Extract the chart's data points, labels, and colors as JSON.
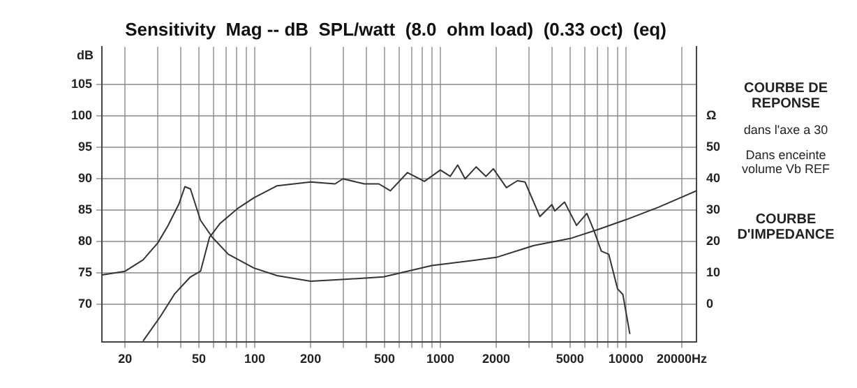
{
  "chart_data": {
    "type": "line",
    "title": "Sensitivity  Mag -- dB  SPL/watt  (8.0  ohm load)  (0.33 oct)  (eq)",
    "ylabel": "dB",
    "xlim": [
      15,
      24000
    ],
    "xticks": [
      20,
      {
        "value": 30,
        "label": null
      },
      {
        "value": 40,
        "label": null
      },
      50,
      {
        "value": 60,
        "label": null
      },
      {
        "value": 70,
        "label": null
      },
      {
        "value": 80,
        "label": null
      },
      {
        "value": 90,
        "label": null
      },
      100,
      200,
      {
        "value": 300,
        "label": null
      },
      {
        "value": 400,
        "label": null
      },
      500,
      {
        "value": 600,
        "label": null
      },
      {
        "value": 700,
        "label": null
      },
      {
        "value": 800,
        "label": null
      },
      {
        "value": 900,
        "label": null
      },
      1000,
      2000,
      {
        "value": 3000,
        "label": null
      },
      {
        "value": 4000,
        "label": null
      },
      5000,
      {
        "value": 6000,
        "label": null
      },
      {
        "value": 7000,
        "label": null
      },
      {
        "value": 8000,
        "label": null
      },
      {
        "value": 9000,
        "label": null
      },
      10000,
      {
        "value": 20000,
        "label": "20000Hz"
      }
    ],
    "ylim": [
      64,
      111
    ],
    "yticks": [
      70,
      75,
      80,
      85,
      90,
      95,
      100,
      105
    ],
    "y2lim": [
      -12,
      82
    ],
    "y2ticks": [
      0,
      10,
      20,
      30,
      40,
      50,
      {
        "value": 60,
        "label": "Ω"
      }
    ],
    "log": "x",
    "grid": true,
    "legend": false,
    "marker": "none",
    "line_style": "solid",
    "series": [
      {
        "color": "#333333",
        "x": [
          25,
          31,
          37,
          45,
          51,
          57,
          65,
          81,
          99,
          132,
          200,
          271,
          298,
          390,
          466,
          538,
          665,
          820,
          1000,
          1130,
          1240,
          1360,
          1560,
          1760,
          1930,
          2270,
          2600,
          2860,
          3440,
          3990,
          4140,
          4670,
          5420,
          6160,
          6720,
          7370,
          8080,
          9010,
          9630,
          10500
        ],
        "values": [
          64.2,
          68.1,
          71.7,
          74.4,
          75.3,
          80.7,
          82.9,
          85.3,
          87,
          88.9,
          89.5,
          89.2,
          90,
          89.2,
          89.2,
          88.1,
          91,
          89.6,
          91.4,
          90.4,
          92.2,
          90,
          91.9,
          90.4,
          91.6,
          88.6,
          89.7,
          89.5,
          84,
          85.9,
          84.9,
          86.3,
          82.6,
          84.5,
          81.8,
          78.5,
          78,
          72.5,
          71.6,
          65.3
        ]
      },
      {
        "color": "#333333",
        "axis": "y2",
        "x": [
          15,
          20,
          25,
          30,
          34,
          39,
          42,
          45,
          51,
          59,
          72,
          99,
          132,
          200,
          306,
          494,
          900,
          1500,
          2000,
          3200,
          5000,
          7100,
          10000,
          15000,
          24000
        ],
        "values": [
          9.4,
          10.6,
          14.2,
          19.6,
          25,
          32,
          37.5,
          36.8,
          26.8,
          21.4,
          16,
          11.6,
          9.2,
          7.4,
          8,
          8.8,
          12.4,
          14,
          15,
          18.8,
          21,
          23.9,
          27,
          31,
          36.2
        ]
      }
    ],
    "annotations": [
      "COURBE DE REPONSE",
      "dans l'axe a 30",
      "Dans enceinte volume Vb REF",
      "COURBE D'IMPEDANCE"
    ]
  }
}
